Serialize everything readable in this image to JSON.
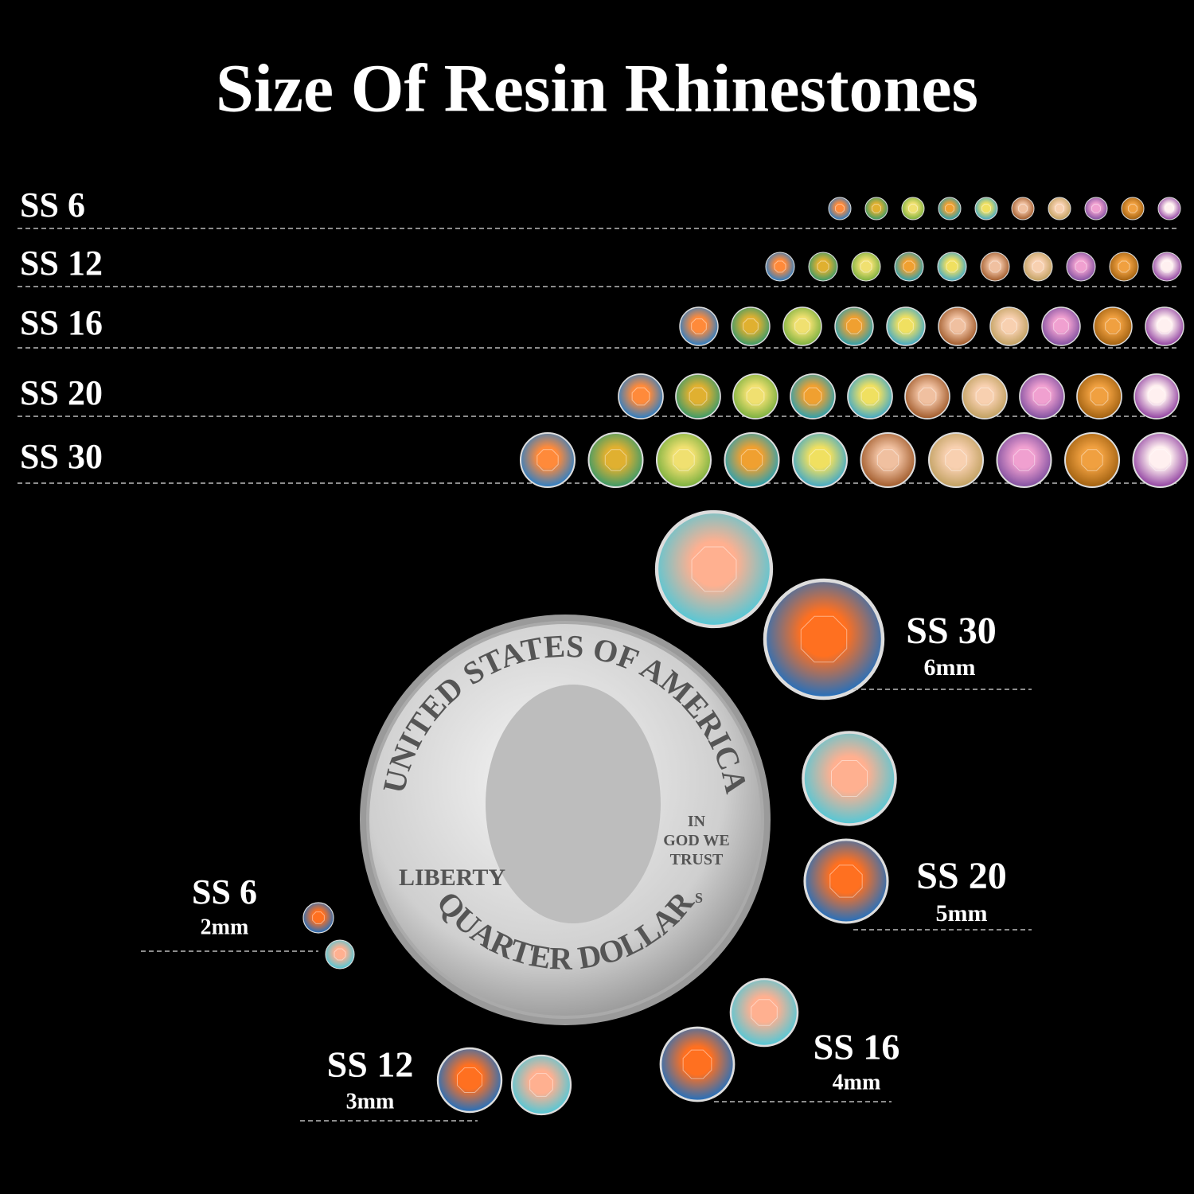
{
  "title": "Size Of Resin Rhinestones",
  "rows": [
    {
      "label": "SS 6"
    },
    {
      "label": "SS 12"
    },
    {
      "label": "SS 16"
    },
    {
      "label": "SS 20"
    },
    {
      "label": "SS 30"
    }
  ],
  "callouts": [
    {
      "label": "SS 30",
      "size": "6mm"
    },
    {
      "label": "SS 20",
      "size": "5mm"
    },
    {
      "label": "SS 6",
      "size": "2mm"
    },
    {
      "label": "SS 12",
      "size": "3mm"
    },
    {
      "label": "SS 16",
      "size": "4mm"
    }
  ],
  "coin": {
    "top": "UNITED STATES OF AMERICA",
    "motto": [
      "IN",
      "GOD WE",
      "TRUST"
    ],
    "left": "LIBERTY",
    "bottom": "QUARTER DOLLAR",
    "mint": "S"
  }
}
